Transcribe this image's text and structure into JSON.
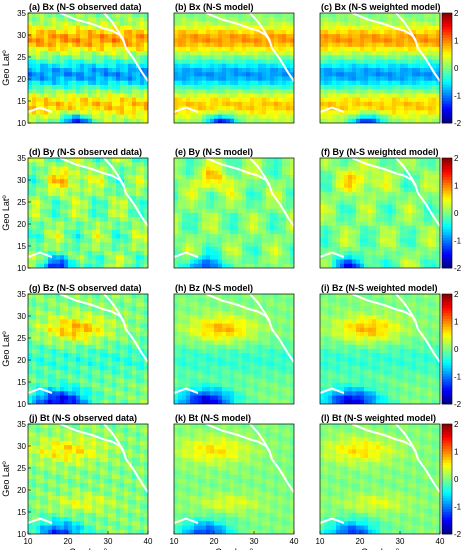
{
  "chart_data": {
    "type": "heatmap",
    "layout": {
      "rows": 4,
      "cols": 3
    },
    "xlabel": "Geo Lon",
    "xlabel_superscript": "o",
    "ylabel": "Geo Lat",
    "ylabel_superscript": "o",
    "xlim": [
      10,
      40
    ],
    "ylim": [
      10,
      35
    ],
    "xticks": [
      10,
      20,
      30,
      40
    ],
    "yticks": [
      10,
      15,
      20,
      25,
      30,
      35
    ],
    "colorbar": {
      "range": [
        -2,
        2
      ],
      "ticks": [
        2,
        1,
        0,
        -1,
        -2
      ],
      "colormap": "jet"
    },
    "panels": [
      {
        "id": "a",
        "title": "(a) Bx (N-S observed data)",
        "component": "Bx"
      },
      {
        "id": "b",
        "title": "(b) Bx (N-S model)",
        "component": "Bx"
      },
      {
        "id": "c",
        "title": "(c) Bx (N-S weighted model)",
        "component": "Bx"
      },
      {
        "id": "d",
        "title": "(d) By (N-S observed data)",
        "component": "By"
      },
      {
        "id": "e",
        "title": "(e) By (N-S model)",
        "component": "By"
      },
      {
        "id": "f",
        "title": "(f) By (N-S weighted model)",
        "component": "By"
      },
      {
        "id": "g",
        "title": "(g) Bz (N-S observed data)",
        "component": "Bz"
      },
      {
        "id": "h",
        "title": "(h) Bz (N-S model)",
        "component": "Bz"
      },
      {
        "id": "i",
        "title": "(i) Bz (N-S weighted model)",
        "component": "Bz"
      },
      {
        "id": "j",
        "title": "(j) Bt (N-S observed data)",
        "component": "Bt"
      },
      {
        "id": "k",
        "title": "(k) Bt (N-S model)",
        "component": "Bt"
      },
      {
        "id": "l",
        "title": "(l) Bt (N-S weighted model)",
        "component": "Bt"
      }
    ],
    "colors": {
      "coastline": "#ffffff",
      "contour": "#000000"
    }
  }
}
